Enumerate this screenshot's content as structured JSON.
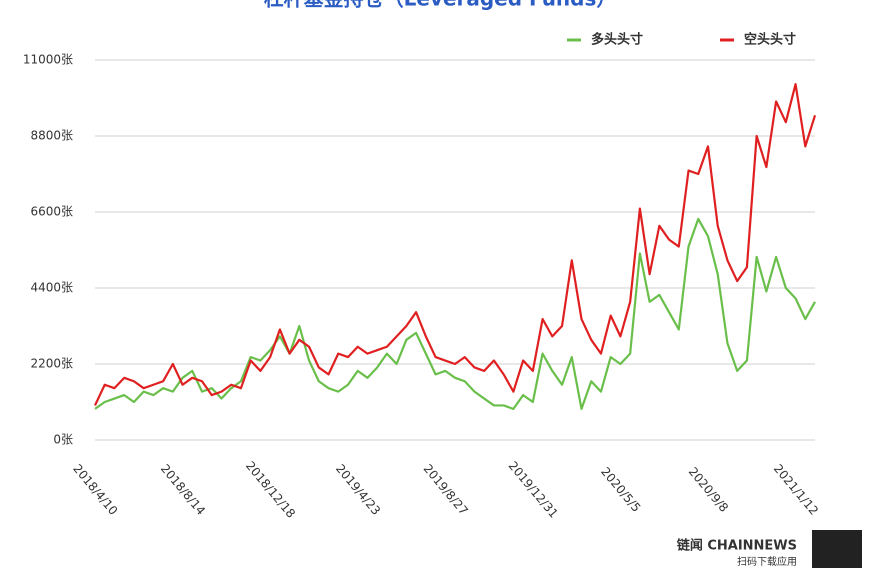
{
  "chart_data": {
    "type": "line",
    "title": "杠杆基金持仓（Leveraged Funds）",
    "categories": [
      "2018/4/10",
      null,
      null,
      null,
      null,
      null,
      null,
      null,
      null,
      "2018/8/14",
      null,
      null,
      null,
      null,
      null,
      null,
      null,
      null,
      "2018/12/18",
      null,
      null,
      null,
      null,
      null,
      null,
      null,
      null,
      "2019/4/23",
      null,
      null,
      null,
      null,
      null,
      null,
      null,
      null,
      "2019/8/27",
      null,
      null,
      null,
      null,
      null,
      null,
      null,
      null,
      "2019/12/31",
      null,
      null,
      null,
      null,
      null,
      null,
      null,
      null,
      "2020/5/5",
      null,
      null,
      null,
      null,
      null,
      null,
      null,
      null,
      "2020/9/8",
      null,
      null,
      null,
      null,
      null,
      null,
      null,
      null,
      "2021/1/12",
      null,
      null
    ],
    "series": [
      {
        "name": "多头头寸",
        "color": "#6abf4b",
        "values": [
          900,
          1100,
          1200,
          1300,
          1100,
          1400,
          1300,
          1500,
          1400,
          1800,
          2000,
          1400,
          1500,
          1200,
          1500,
          1700,
          2400,
          2300,
          2600,
          3000,
          2500,
          3300,
          2300,
          1700,
          1500,
          1400,
          1600,
          2000,
          1800,
          2100,
          2500,
          2200,
          2900,
          3100,
          2500,
          1900,
          2000,
          1800,
          1700,
          1400,
          1200,
          1000,
          1000,
          900,
          1300,
          1100,
          2500,
          2000,
          1600,
          2400,
          900,
          1700,
          1400,
          2400,
          2200,
          2500,
          5400,
          4000,
          4200,
          3700,
          3200,
          5600,
          6400,
          5900,
          4800,
          2800,
          2000,
          2300,
          5300,
          4300,
          5300,
          4400,
          4100,
          3500,
          4000
        ]
      },
      {
        "name": "空头头寸",
        "color": "#e02020",
        "values": [
          1000,
          1600,
          1500,
          1800,
          1700,
          1500,
          1600,
          1700,
          2200,
          1600,
          1800,
          1700,
          1300,
          1400,
          1600,
          1500,
          2300,
          2000,
          2400,
          3200,
          2500,
          2900,
          2700,
          2100,
          1900,
          2500,
          2400,
          2700,
          2500,
          2600,
          2700,
          3000,
          3300,
          3700,
          3000,
          2400,
          2300,
          2200,
          2400,
          2100,
          2000,
          2300,
          1900,
          1400,
          2300,
          2000,
          3500,
          3000,
          3300,
          5200,
          3500,
          2900,
          2500,
          3600,
          3000,
          4000,
          6700,
          4800,
          6200,
          5800,
          5600,
          7800,
          7700,
          8500,
          6200,
          5200,
          4600,
          5000,
          8800,
          7900,
          9800,
          9200,
          10300,
          8500,
          9400
        ]
      }
    ],
    "ylim": [
      0,
      11000
    ],
    "yticks": [
      {
        "value": 0,
        "label": "0张"
      },
      {
        "value": 2200,
        "label": "2200张"
      },
      {
        "value": 4400,
        "label": "4400张"
      },
      {
        "value": 6600,
        "label": "6600张"
      },
      {
        "value": 8800,
        "label": "8800张"
      },
      {
        "value": 11000,
        "label": "11000张"
      }
    ],
    "grid": true
  },
  "logo": {
    "brand": "链闻 CHAINNEWS",
    "tagline": "扫码下载应用"
  }
}
